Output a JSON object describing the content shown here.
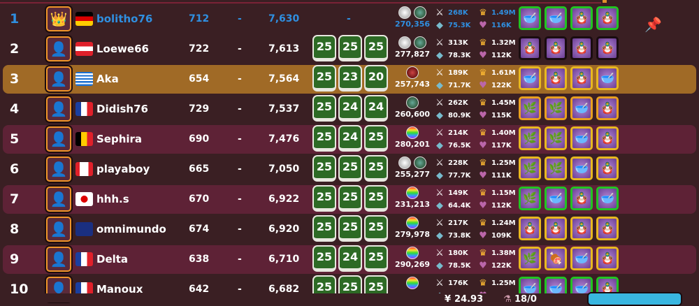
{
  "colors": {
    "accent_blue": "#2f8fe0",
    "highlight": "#a06a26",
    "row_alt": "#5e2236",
    "row_base": "#3a1f23",
    "box_green": "#2d6a25"
  },
  "rows": [
    {
      "rank": "1",
      "name": "bolitho76",
      "flag": "de",
      "level": "712",
      "dash": "-",
      "points": "7,630",
      "boxes": [],
      "center": "-",
      "orbs": [
        "silver",
        "green"
      ],
      "power": "270,356",
      "s1": "268K",
      "s2": "75.3K",
      "s3": "1.49M",
      "s4": "116K",
      "items": [
        "bowl",
        "bowl",
        "doll",
        "doll"
      ],
      "frame": "#22c422",
      "style": "self",
      "avatar": "crown-icon",
      "pin": true
    },
    {
      "rank": "2",
      "name": "Loewe66",
      "flag": "at",
      "level": "722",
      "dash": "-",
      "points": "7,613",
      "boxes": [
        "25",
        "25",
        "25"
      ],
      "orbs": [
        "silver",
        "green"
      ],
      "power": "277,827",
      "s1": "313K",
      "s2": "78.3K",
      "s3": "1.32M",
      "s4": "112K",
      "items": [
        "doll",
        "doll",
        "doll",
        "doll"
      ],
      "frame": "#1a0c10",
      "style": "base"
    },
    {
      "rank": "3",
      "name": "Aka",
      "flag": "gr",
      "level": "654",
      "dash": "-",
      "points": "7,564",
      "boxes": [
        "25",
        "23",
        "20"
      ],
      "orbs": [
        "red"
      ],
      "power": "257,743",
      "s1": "189K",
      "s2": "71.7K",
      "s3": "1.61M",
      "s4": "122K",
      "items": [
        "bowl",
        "doll",
        "doll",
        "bowl"
      ],
      "frame": "#e8b820",
      "style": "hl"
    },
    {
      "rank": "4",
      "name": "Didish76",
      "flag": "fr",
      "level": "729",
      "dash": "-",
      "points": "7,537",
      "boxes": [
        "25",
        "24",
        "24"
      ],
      "orbs": [
        "green"
      ],
      "power": "260,600",
      "s1": "262K",
      "s2": "80.9K",
      "s3": "1.45M",
      "s4": "115K",
      "items": [
        "herb",
        "herb",
        "bowl",
        "doll"
      ],
      "frame": "#e8a020",
      "style": "base"
    },
    {
      "rank": "5",
      "name": "Sephira",
      "flag": "be",
      "level": "690",
      "dash": "-",
      "points": "7,476",
      "boxes": [
        "25",
        "24",
        "25"
      ],
      "orbs": [
        "rainbow"
      ],
      "power": "280,201",
      "s1": "214K",
      "s2": "76.5K",
      "s3": "1.40M",
      "s4": "117K",
      "items": [
        "herb",
        "herb",
        "bowl",
        "doll"
      ],
      "frame": "#e8b820",
      "style": "alt"
    },
    {
      "rank": "6",
      "name": "playaboy",
      "flag": "ca",
      "level": "665",
      "dash": "-",
      "points": "7,050",
      "boxes": [
        "25",
        "25",
        "25"
      ],
      "orbs": [
        "silver",
        "green"
      ],
      "power": "255,277",
      "s1": "228K",
      "s2": "77.7K",
      "s3": "1.25M",
      "s4": "111K",
      "items": [
        "herb",
        "herb",
        "bowl",
        "doll"
      ],
      "frame": "#e8b820",
      "style": "base"
    },
    {
      "rank": "7",
      "name": "hhh.s",
      "flag": "jp",
      "level": "670",
      "dash": "-",
      "points": "6,922",
      "boxes": [
        "25",
        "25",
        "25"
      ],
      "orbs": [
        "rainbow"
      ],
      "power": "231,213",
      "s1": "149K",
      "s2": "64.4K",
      "s3": "1.15M",
      "s4": "112K",
      "items": [
        "herb",
        "bowl",
        "doll",
        "bowl"
      ],
      "frame": "#22c422",
      "style": "alt"
    },
    {
      "rank": "8",
      "name": "omnimundo",
      "flag": "gb",
      "level": "674",
      "dash": "-",
      "points": "6,920",
      "boxes": [
        "25",
        "25",
        "25"
      ],
      "orbs": [
        "rainbow"
      ],
      "power": "279,978",
      "s1": "217K",
      "s2": "73.8K",
      "s3": "1.24M",
      "s4": "109K",
      "items": [
        "doll",
        "doll",
        "doll",
        "doll"
      ],
      "frame": "#e8b820",
      "style": "base"
    },
    {
      "rank": "9",
      "name": "Delta",
      "flag": "fr",
      "level": "638",
      "dash": "-",
      "points": "6,710",
      "boxes": [
        "25",
        "24",
        "25"
      ],
      "orbs": [
        "rainbow"
      ],
      "power": "290,269",
      "s1": "180K",
      "s2": "78.5K",
      "s3": "1.38M",
      "s4": "122K",
      "items": [
        "herb",
        "meat",
        "bowl",
        "doll"
      ],
      "frame": "#e8b820",
      "style": "alt"
    },
    {
      "rank": "10",
      "name": "Manoux",
      "flag": "fr",
      "level": "642",
      "dash": "-",
      "points": "6,682",
      "boxes": [
        "25",
        "25",
        "25"
      ],
      "orbs": [
        "rainbow"
      ],
      "power": "",
      "s1": "176K",
      "s2": "",
      "s3": "1.25M",
      "s4": "",
      "items": [
        "bowl",
        "bowl",
        "bowl",
        "doll"
      ],
      "frame": "#22c422",
      "style": "base"
    }
  ],
  "footer": {
    "currency": "24.93",
    "counter": "18/0"
  }
}
